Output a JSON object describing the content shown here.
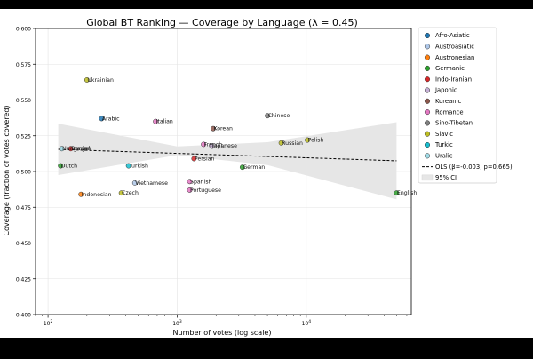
{
  "chart_data": {
    "type": "scatter",
    "title": "Global BT Ranking — Coverage by Language (λ = 0.45)",
    "xlabel": "Number of votes (log scale)",
    "ylabel": "Coverage (fraction of votes covered)",
    "x_scale": "log",
    "xlim": [
      80,
      65000
    ],
    "ylim": [
      0.4,
      0.6
    ],
    "x_ticks": [
      {
        "value": 100,
        "base": "10",
        "exp": "2"
      },
      {
        "value": 1000,
        "base": "10",
        "exp": "3"
      },
      {
        "value": 10000,
        "base": "10",
        "exp": "4"
      }
    ],
    "y_ticks": [
      "0.400",
      "0.425",
      "0.450",
      "0.475",
      "0.500",
      "0.525",
      "0.550",
      "0.575",
      "0.600"
    ],
    "grid": true,
    "legend_position": "outside-right",
    "legend_series": [
      {
        "name": "Afro-Asiatic",
        "color": "#1f77b4"
      },
      {
        "name": "Austroasiatic",
        "color": "#aec7e8"
      },
      {
        "name": "Austronesian",
        "color": "#ff7f0e"
      },
      {
        "name": "Germanic",
        "color": "#2ca02c"
      },
      {
        "name": "Indo-Iranian",
        "color": "#d62728"
      },
      {
        "name": "Japonic",
        "color": "#c5b0d5"
      },
      {
        "name": "Koreanic",
        "color": "#8c564b"
      },
      {
        "name": "Romance",
        "color": "#e377c2"
      },
      {
        "name": "Sino-Tibetan",
        "color": "#7f7f7f"
      },
      {
        "name": "Slavic",
        "color": "#bcbd22"
      },
      {
        "name": "Turkic",
        "color": "#17becf"
      },
      {
        "name": "Uralic",
        "color": "#9edae5"
      }
    ],
    "legend_lines": [
      {
        "name": "OLS (β=-0.003, p=0.665)",
        "kind": "dashed-line"
      },
      {
        "name": "95% CI",
        "kind": "band"
      }
    ],
    "points": [
      {
        "label": "Ukrainian",
        "x": 200,
        "y": 0.564,
        "family": "Slavic"
      },
      {
        "label": "Arabic",
        "x": 260,
        "y": 0.537,
        "family": "Afro-Asiatic"
      },
      {
        "label": "Italian",
        "x": 680,
        "y": 0.535,
        "family": "Romance"
      },
      {
        "label": "Chinese",
        "x": 5000,
        "y": 0.539,
        "family": "Sino-Tibetan"
      },
      {
        "label": "Korean",
        "x": 1900,
        "y": 0.53,
        "family": "Koreanic"
      },
      {
        "label": "Bengali",
        "x": 150,
        "y": 0.516,
        "family": "Indo-Iranian"
      },
      {
        "label": "Hungarian",
        "x": 128,
        "y": 0.516,
        "family": "Uralic"
      },
      {
        "label": "French",
        "x": 1600,
        "y": 0.519,
        "family": "Romance"
      },
      {
        "label": "Japanese",
        "x": 1850,
        "y": 0.518,
        "family": "Japonic"
      },
      {
        "label": "Russian",
        "x": 6400,
        "y": 0.52,
        "family": "Slavic"
      },
      {
        "label": "Polish",
        "x": 10200,
        "y": 0.522,
        "family": "Slavic"
      },
      {
        "label": "Persian",
        "x": 1350,
        "y": 0.509,
        "family": "Indo-Iranian"
      },
      {
        "label": "Dutch",
        "x": 125,
        "y": 0.504,
        "family": "Germanic"
      },
      {
        "label": "Turkish",
        "x": 420,
        "y": 0.504,
        "family": "Turkic"
      },
      {
        "label": "German",
        "x": 3200,
        "y": 0.503,
        "family": "Germanic"
      },
      {
        "label": "Vietnamese",
        "x": 470,
        "y": 0.492,
        "family": "Austroasiatic"
      },
      {
        "label": "Spanish",
        "x": 1250,
        "y": 0.493,
        "family": "Romance"
      },
      {
        "label": "Portuguese",
        "x": 1250,
        "y": 0.487,
        "family": "Romance"
      },
      {
        "label": "Indonesian",
        "x": 180,
        "y": 0.484,
        "family": "Austronesian"
      },
      {
        "label": "Czech",
        "x": 370,
        "y": 0.485,
        "family": "Slavic"
      },
      {
        "label": "English",
        "x": 50000,
        "y": 0.485,
        "family": "Germanic"
      }
    ],
    "ols_line": {
      "x": [
        120,
        50000
      ],
      "y": [
        0.5155,
        0.5075
      ]
    },
    "ci_band": {
      "x": [
        120,
        1000,
        5000,
        50000
      ],
      "upper": [
        0.5335,
        0.5175,
        0.5205,
        0.5345
      ],
      "lower": [
        0.4975,
        0.5115,
        0.5045,
        0.4805
      ]
    }
  }
}
